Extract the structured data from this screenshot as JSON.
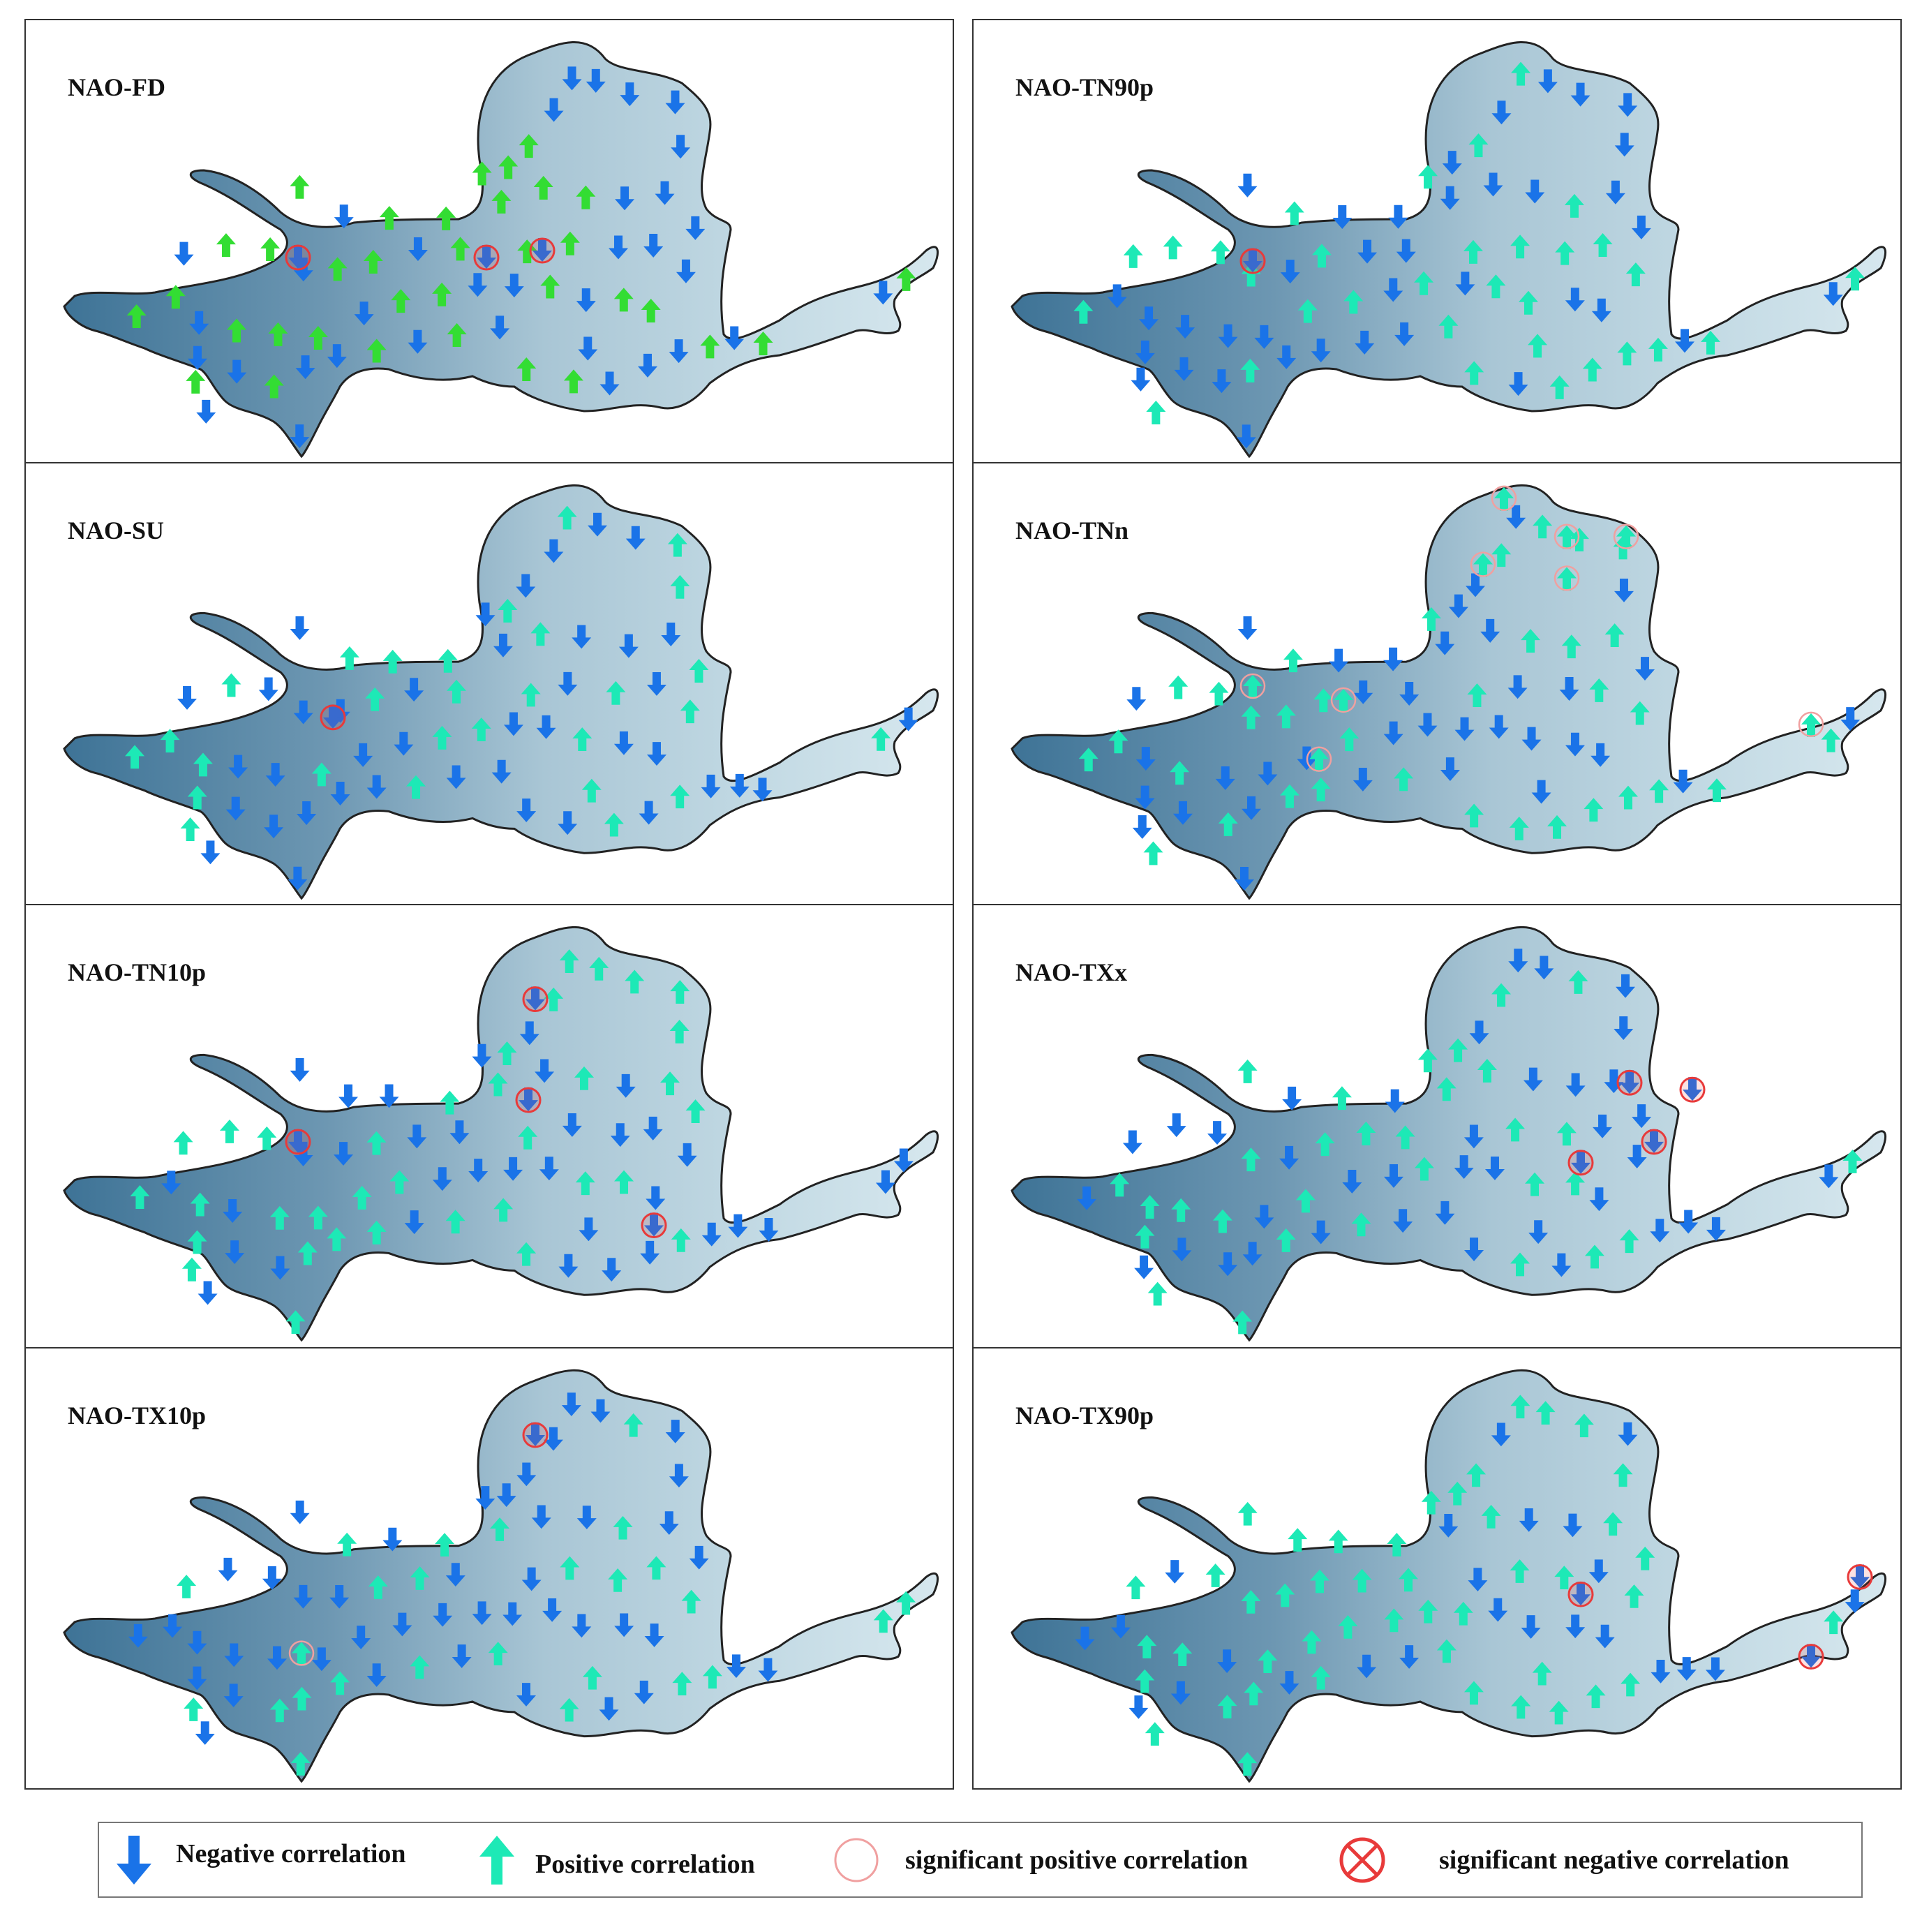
{
  "panels": [
    {
      "id": "fd",
      "title": "NAO-FD"
    },
    {
      "id": "tn90p",
      "title": "NAO-TN90p"
    },
    {
      "id": "su",
      "title": "NAO-SU"
    },
    {
      "id": "tnn",
      "title": "NAO-TNn"
    },
    {
      "id": "tn10p",
      "title": "NAO-TN10p"
    },
    {
      "id": "txx",
      "title": "NAO-TXx"
    },
    {
      "id": "tx10p",
      "title": "NAO-TX10p"
    },
    {
      "id": "tx90p",
      "title": "NAO-TX90p"
    }
  ],
  "legend": {
    "negative": "Negative correlation",
    "positive": "Positive correlation",
    "sig_positive": "significant positive correlation",
    "sig_negative": "significant negative correlation"
  },
  "colors": {
    "negative": "#1a73e8",
    "positive_fd": "#33dd33",
    "positive": "#1de9b6",
    "significant": "#e83a3a",
    "basin_dark": "#3e7396",
    "basin_light": "#d6e7ee"
  },
  "icons": {
    "negative": "arrow-down-icon",
    "positive": "arrow-up-icon",
    "sig_positive": "circle-icon",
    "sig_negative": "circle-x-icon"
  }
}
